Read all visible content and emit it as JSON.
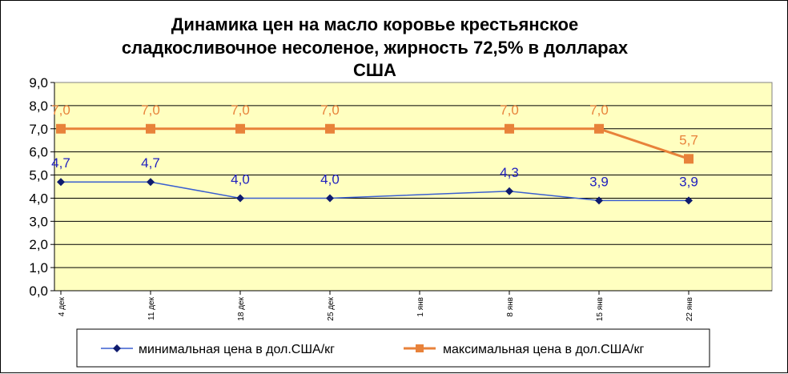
{
  "chart_data": {
    "type": "line",
    "title": "Динамика цен на масло коровье крестьянское сладкосливочное несоленое, жирность 72,5%  в долларах США",
    "title_lines": [
      "Динамика цен на масло коровье крестьянское",
      "сладкосливочное несоленое, жирность 72,5%  в долларах",
      "США"
    ],
    "categories": [
      "4 дек",
      "11 дек",
      "18 дек",
      "25 дек",
      "1 янв",
      "8 янв",
      "15 янв",
      "22 янв"
    ],
    "ylim": [
      0,
      9
    ],
    "y_ticks": [
      "0,0",
      "1,0",
      "2,0",
      "3,0",
      "4,0",
      "5,0",
      "6,0",
      "7,0",
      "8,0",
      "9,0"
    ],
    "grid": true,
    "legend_position": "bottom",
    "series": [
      {
        "name": "минимальная  цена в дол.США/кг",
        "values": [
          4.7,
          4.7,
          4.0,
          4.0,
          null,
          4.3,
          3.9,
          3.9
        ],
        "labels": [
          "4,7",
          "4,7",
          "4,0",
          "4,0",
          null,
          "4,3",
          "3,9",
          "3,9"
        ],
        "color": "#3a5fd0",
        "marker_color": "#0f1b6e",
        "marker": "diamond"
      },
      {
        "name": "максимальная цена в дол.США/кг",
        "values": [
          7.0,
          7.0,
          7.0,
          7.0,
          null,
          7.0,
          7.0,
          5.7
        ],
        "labels": [
          "7,0",
          "7,0",
          "7,0",
          "7,0",
          null,
          "7,0",
          "7,0",
          "5,7"
        ],
        "color": "#e8823a",
        "marker_color": "#e8823a",
        "marker": "square"
      }
    ],
    "plot_background": "#ffffc0"
  }
}
